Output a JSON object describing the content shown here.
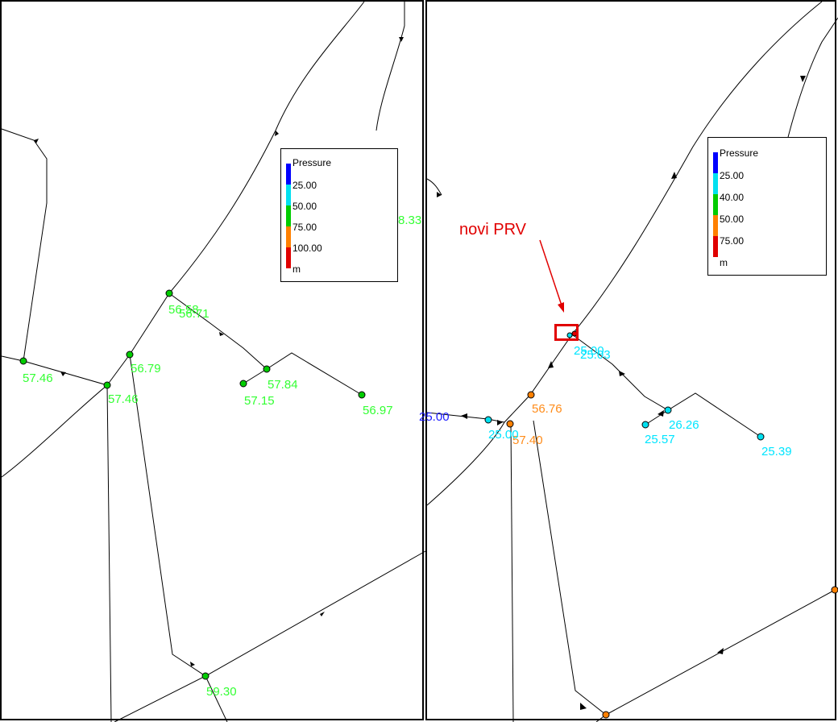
{
  "colors": {
    "blue": "#0000ff",
    "cyan": "#00e0f0",
    "green": "#00cc00",
    "orange": "#ff8000",
    "red": "#e00000",
    "label_green": "#33ff33",
    "label_cyan": "#00e5ff",
    "label_orange": "#ff8c1a",
    "label_blue": "#1a1aff",
    "annotation_red": "#e10000"
  },
  "left_panel": {
    "legend": {
      "title": "Pressure",
      "entries": [
        {
          "label": "25.00",
          "color": "#0000ff"
        },
        {
          "label": "50.00",
          "color": "#00e0f0"
        },
        {
          "label": "75.00",
          "color": "#00cc00"
        },
        {
          "label": "100.00",
          "color": "#ff8000"
        },
        {
          "label": "m",
          "color": "#e00000"
        }
      ]
    },
    "labels": {
      "n1": "56.58",
      "n1_overlap": "56.71",
      "n2": "56.79",
      "n3": "57.46",
      "n4": "57.46",
      "n5": "57.84",
      "n6": "57.15",
      "n7": "56.97",
      "n8": "59.30",
      "edge_partial": "8.33"
    }
  },
  "right_panel": {
    "annotation": "novi PRV",
    "legend": {
      "title": "Pressure",
      "entries": [
        {
          "label": "25.00",
          "color": "#0000ff"
        },
        {
          "label": "40.00",
          "color": "#00e0f0"
        },
        {
          "label": "50.00",
          "color": "#00cc00"
        },
        {
          "label": "75.00",
          "color": "#ff8000"
        },
        {
          "label": "m",
          "color": "#e00000"
        }
      ]
    },
    "labels": {
      "prv_a": "25.00",
      "prv_b": "25.03",
      "n_orange": "56.76",
      "n_cyan_left": "25.00",
      "n_orange_bottom": "57.40",
      "n_blue_edge": "25.00",
      "n5": "26.26",
      "n6": "25.57",
      "n7": "25.39"
    }
  }
}
